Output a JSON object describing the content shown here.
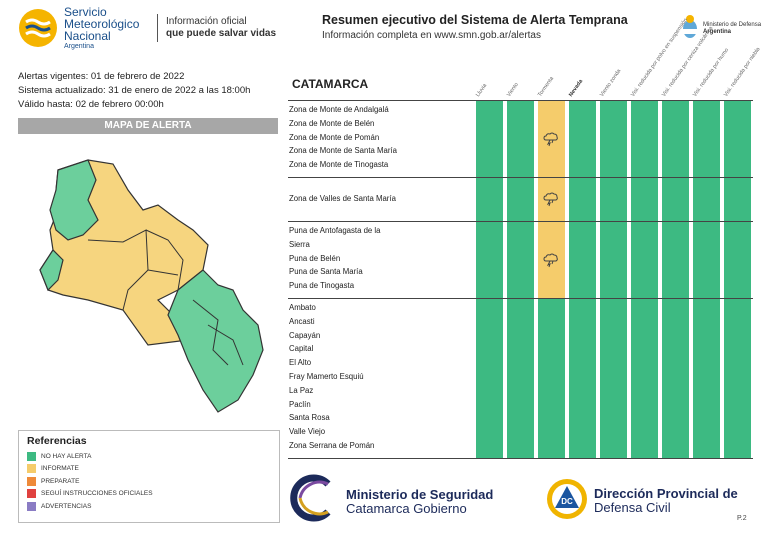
{
  "header": {
    "org_line1": "Servicio",
    "org_line2": "Meteorológico",
    "org_line3": "Nacional",
    "org_country": "Argentina",
    "tagline_line1": "Información oficial",
    "tagline_line2": "que puede salvar vidas",
    "title": "Resumen ejecutivo del Sistema de Alerta Temprana",
    "subtitle": "Información completa en www.smn.gob.ar/alertas",
    "ministry_line1": "Ministerio de Defensa",
    "ministry_line2": "Argentina"
  },
  "meta": {
    "vigentes": "Alertas vigentes: 01 de febrero de 2022",
    "actualizado": "Sistema actualizado: 31 de enero de 2022 a las 18:00h",
    "valido": "Válido hasta: 02 de febrero 00:00h"
  },
  "map_banner": "MAPA DE ALERTA",
  "references": {
    "title": "Referencias",
    "items": [
      {
        "label": "NO HAY ALERTA",
        "color": "#3dba82"
      },
      {
        "label": "INFORMATE",
        "color": "#f5cc6b"
      },
      {
        "label": "PREPARATE",
        "color": "#ee8a3a"
      },
      {
        "label": "SEGUÍ INSTRUCCIONES OFICIALES",
        "color": "#e0413f"
      },
      {
        "label": "ADVERTENCIAS",
        "color": "#8a7cc4"
      }
    ]
  },
  "table": {
    "province": "CATAMARCA",
    "columns": [
      "Lluvia",
      "Viento",
      "Tormenta",
      "Nevada",
      "Viento zonda",
      "Visi. reducida por polvo en suspensión",
      "Visi. reducida por ceniza volcánica",
      "Visi. reducida por humo",
      "Visi. reducida por niebla"
    ],
    "groups": [
      {
        "zones": [
          "Zona de Monte de Andalgalá",
          "Zona de Monte de Belén",
          "Zona de Monte de Pomán",
          "Zona de Monte de Santa María",
          "Zona de Monte de Tinogasta"
        ],
        "levels": [
          "none",
          "none",
          "info",
          "none",
          "none",
          "none",
          "none",
          "none",
          "none"
        ]
      },
      {
        "zones": [
          "Zona de Valles de Santa María"
        ],
        "levels": [
          "none",
          "none",
          "info",
          "none",
          "none",
          "none",
          "none",
          "none",
          "none"
        ]
      },
      {
        "zones": [
          "Puna de Antofagasta de la",
          "Sierra",
          "Puna de Belén",
          "Puna de Santa María",
          "Puna de Tinogasta"
        ],
        "levels": [
          "none",
          "none",
          "info",
          "none",
          "none",
          "none",
          "none",
          "none",
          "none"
        ]
      },
      {
        "zones": [
          "Ambato",
          "Ancasti",
          "Capayán",
          "Capital",
          "El Alto",
          "Fray Mamerto Esquiú",
          "La Paz",
          "Paclín",
          "Santa Rosa",
          "Valle Viejo",
          "Zona Serrana de Pomán"
        ],
        "levels": [
          "none",
          "none",
          "none",
          "none",
          "none",
          "none",
          "none",
          "none",
          "none"
        ]
      }
    ]
  },
  "colors": {
    "none": "#3dba82",
    "info": "#f5cc6b",
    "map_green": "#6ccf9c",
    "map_yellow": "#f6d57f"
  },
  "footer": {
    "seg_line1": "Ministerio de Seguridad",
    "seg_line2": "Catamarca Gobierno",
    "dc_line1": "Dirección Provincial de",
    "dc_line2": "Defensa Civil",
    "dc_badge": "DC",
    "page": "P.2"
  }
}
